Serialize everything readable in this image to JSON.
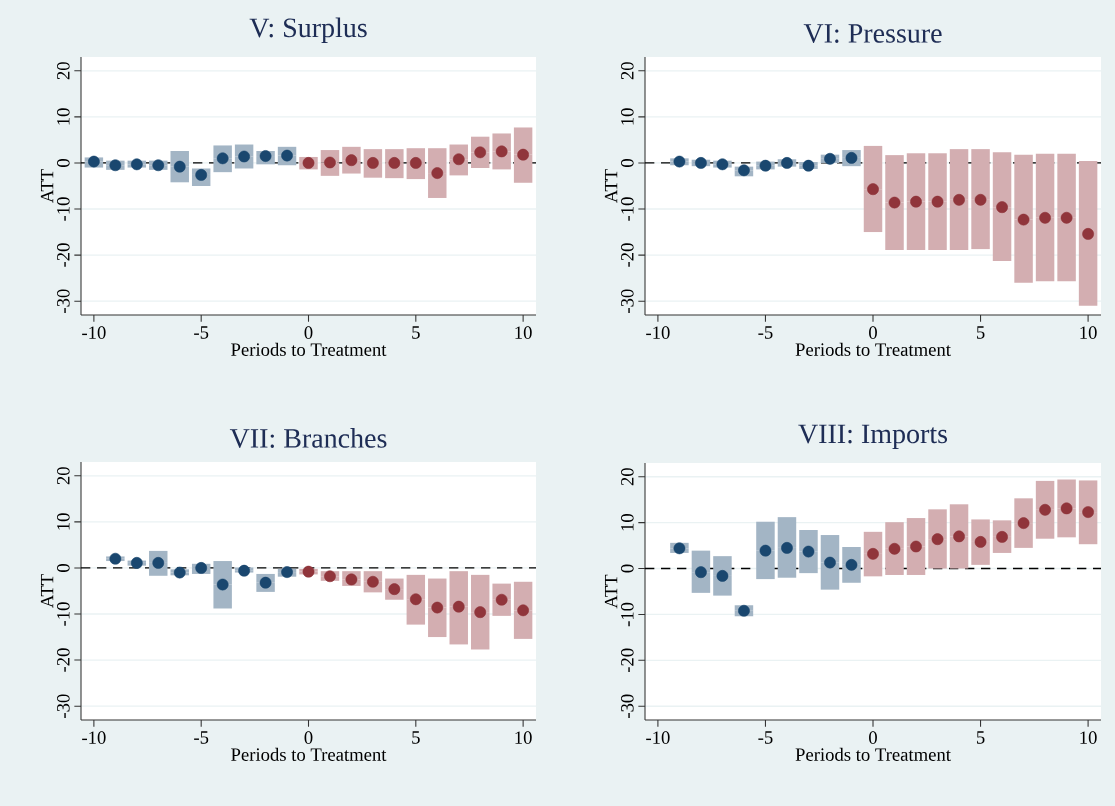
{
  "chart_data": [
    {
      "type": "scatter",
      "title": "V: Surplus",
      "xlabel": "Periods to Treatment",
      "ylabel": "ATT",
      "xlim": [
        -10.6,
        10.6
      ],
      "ylim": [
        -33,
        23
      ],
      "xticks": [
        -10,
        -5,
        0,
        5,
        10
      ],
      "yticks": [
        -30,
        -20,
        -10,
        0,
        10,
        20
      ],
      "grid": "y",
      "ref_lines": [
        {
          "axis": "y",
          "value": 0,
          "color": "#000000",
          "line_style": "dashed"
        }
      ],
      "series": [
        {
          "color": "#1a476f",
          "x": [
            -10,
            -9,
            -8,
            -7,
            -6,
            -5,
            -4,
            -3,
            -2,
            -1
          ],
          "values": [
            0.3,
            -0.5,
            -0.3,
            -0.5,
            -0.8,
            -2.6,
            1.0,
            1.4,
            1.5,
            1.6
          ],
          "errors": [
            [
              -1,
              1.2
            ],
            [
              -1.5,
              0.5
            ],
            [
              -1,
              0.5
            ],
            [
              -1.5,
              0.5
            ],
            [
              -4.2,
              2.6
            ],
            [
              -5,
              -1.2
            ],
            [
              -2,
              3.8
            ],
            [
              -1.2,
              4
            ],
            [
              -0.3,
              2.6
            ],
            [
              -0.5,
              3.5
            ]
          ]
        },
        {
          "color": "#90353b",
          "x": [
            0,
            1,
            2,
            3,
            4,
            5,
            6,
            7,
            8,
            9,
            10
          ],
          "values": [
            0,
            0.1,
            0.6,
            0,
            0,
            0,
            -2.2,
            0.8,
            2.3,
            2.5,
            1.8
          ],
          "errors": [
            [
              -1.4,
              1.3
            ],
            [
              -2.8,
              2.8
            ],
            [
              -2.3,
              3.5
            ],
            [
              -3.2,
              3
            ],
            [
              -3.3,
              3
            ],
            [
              -3.5,
              3.2
            ],
            [
              -7.6,
              3.2
            ],
            [
              -2.7,
              4
            ],
            [
              -1.1,
              5.7
            ],
            [
              -1.4,
              6.4
            ],
            [
              -4.3,
              7.7
            ]
          ]
        }
      ]
    },
    {
      "type": "scatter",
      "title": "VI: Pressure",
      "xlabel": "Periods to Treatment",
      "ylabel": "ATT",
      "xlim": [
        -10.6,
        10.6
      ],
      "ylim": [
        -33,
        23
      ],
      "xticks": [
        -10,
        -5,
        0,
        5,
        10
      ],
      "yticks": [
        -30,
        -20,
        -10,
        0,
        10,
        20
      ],
      "grid": "y",
      "ref_lines": [
        {
          "axis": "y",
          "value": 0,
          "color": "#000000",
          "line_style": "dashed"
        }
      ],
      "series": [
        {
          "color": "#1a476f",
          "x": [
            -9,
            -8,
            -7,
            -6,
            -5,
            -4,
            -3,
            -2,
            -1
          ],
          "values": [
            0.3,
            0,
            -0.3,
            -1.6,
            -0.6,
            0,
            -0.6,
            0.9,
            1.1
          ],
          "errors": [
            [
              -0.5,
              1
            ],
            [
              -0.7,
              0.7
            ],
            [
              -1,
              0.5
            ],
            [
              -2.9,
              -0.8
            ],
            [
              -1.4,
              0.3
            ],
            [
              -0.8,
              0.8
            ],
            [
              -1.3,
              0.2
            ],
            [
              0,
              1.8
            ],
            [
              -0.7,
              2.8
            ]
          ]
        },
        {
          "color": "#90353b",
          "x": [
            0,
            1,
            2,
            3,
            4,
            5,
            6,
            7,
            8,
            9,
            10
          ],
          "values": [
            -5.7,
            -8.6,
            -8.4,
            -8.4,
            -8,
            -8,
            -9.6,
            -12.3,
            -11.9,
            -11.9,
            -15.4
          ],
          "errors": [
            [
              -15,
              3.7
            ],
            [
              -18.9,
              1.7
            ],
            [
              -18.9,
              2.1
            ],
            [
              -18.9,
              2.1
            ],
            [
              -18.9,
              3
            ],
            [
              -18.7,
              3
            ],
            [
              -21.3,
              2.3
            ],
            [
              -26,
              1.8
            ],
            [
              -25.7,
              2
            ],
            [
              -25.7,
              2
            ],
            [
              -31,
              0.4
            ]
          ]
        }
      ]
    },
    {
      "type": "scatter",
      "title": "VII: Branches",
      "xlabel": "Periods to Treatment",
      "ylabel": "ATT",
      "xlim": [
        -10.6,
        10.6
      ],
      "ylim": [
        -33,
        23
      ],
      "xticks": [
        -10,
        -5,
        0,
        5,
        10
      ],
      "yticks": [
        -30,
        -20,
        -10,
        0,
        10,
        20
      ],
      "grid": "y",
      "ref_lines": [
        {
          "axis": "y",
          "value": 0,
          "color": "#000000",
          "line_style": "dashed"
        }
      ],
      "series": [
        {
          "color": "#1a476f",
          "x": [
            -9,
            -8,
            -7,
            -6,
            -5,
            -4,
            -3,
            -2,
            -1
          ],
          "values": [
            2,
            1.1,
            1.1,
            -1,
            0,
            -3.6,
            -0.6,
            -3.2,
            -0.9
          ],
          "errors": [
            [
              1.5,
              2.5
            ],
            [
              0.5,
              1.6
            ],
            [
              -1.7,
              3.7
            ],
            [
              -1.6,
              -0.3
            ],
            [
              -1.3,
              0.9
            ],
            [
              -8.8,
              1.5
            ],
            [
              -1,
              0.1
            ],
            [
              -5.2,
              -1.3
            ],
            [
              -1.9,
              -0.2
            ]
          ]
        },
        {
          "color": "#90353b",
          "x": [
            0,
            1,
            2,
            3,
            4,
            5,
            6,
            7,
            8,
            9,
            10
          ],
          "values": [
            -0.8,
            -1.8,
            -2.5,
            -3,
            -4.6,
            -6.8,
            -8.6,
            -8.4,
            -9.6,
            -6.9,
            -9.2
          ],
          "errors": [
            [
              -1.4,
              -0.2
            ],
            [
              -2.8,
              -0.7
            ],
            [
              -3.9,
              -0.7
            ],
            [
              -5.3,
              -0.7
            ],
            [
              -6.9,
              -2.3
            ],
            [
              -12.3,
              -1.5
            ],
            [
              -15,
              -2.3
            ],
            [
              -16.6,
              -0.7
            ],
            [
              -17.7,
              -1.5
            ],
            [
              -10.4,
              -3.4
            ],
            [
              -15.4,
              -3
            ]
          ]
        }
      ]
    },
    {
      "type": "scatter",
      "title": "VIII: Imports",
      "xlabel": "Periods to Treatment",
      "ylabel": "ATT",
      "xlim": [
        -10.6,
        10.6
      ],
      "ylim": [
        -33,
        23
      ],
      "xticks": [
        -10,
        -5,
        0,
        5,
        10
      ],
      "yticks": [
        -30,
        -20,
        -10,
        0,
        10,
        20
      ],
      "grid": "y",
      "ref_lines": [
        {
          "axis": "y",
          "value": 0,
          "color": "#000000",
          "line_style": "dashed"
        }
      ],
      "series": [
        {
          "color": "#1a476f",
          "x": [
            -9,
            -8,
            -7,
            -6,
            -5,
            -4,
            -3,
            -2,
            -1
          ],
          "values": [
            4.4,
            -0.8,
            -1.6,
            -9.2,
            3.9,
            4.5,
            3.7,
            1.3,
            0.8
          ],
          "errors": [
            [
              3.4,
              5.6
            ],
            [
              -5.3,
              3.9
            ],
            [
              -5.9,
              2.7
            ],
            [
              -10.4,
              -8
            ],
            [
              -2.3,
              10.2
            ],
            [
              -2,
              11.2
            ],
            [
              -1,
              8.4
            ],
            [
              -4.6,
              7.3
            ],
            [
              -3.1,
              4.7
            ]
          ]
        },
        {
          "color": "#90353b",
          "x": [
            0,
            1,
            2,
            3,
            4,
            5,
            6,
            7,
            8,
            9,
            10
          ],
          "values": [
            3.2,
            4.3,
            4.8,
            6.4,
            7,
            5.8,
            6.9,
            9.9,
            12.8,
            13.1,
            12.3
          ],
          "errors": [
            [
              -1.7,
              8
            ],
            [
              -1.4,
              10.1
            ],
            [
              -1.4,
              11
            ],
            [
              0,
              12.9
            ],
            [
              0,
              14
            ],
            [
              0.8,
              10.7
            ],
            [
              3.4,
              10.5
            ],
            [
              4.5,
              15.3
            ],
            [
              6.5,
              19.1
            ],
            [
              6.8,
              19.4
            ],
            [
              5.3,
              19.2
            ]
          ]
        }
      ]
    }
  ]
}
